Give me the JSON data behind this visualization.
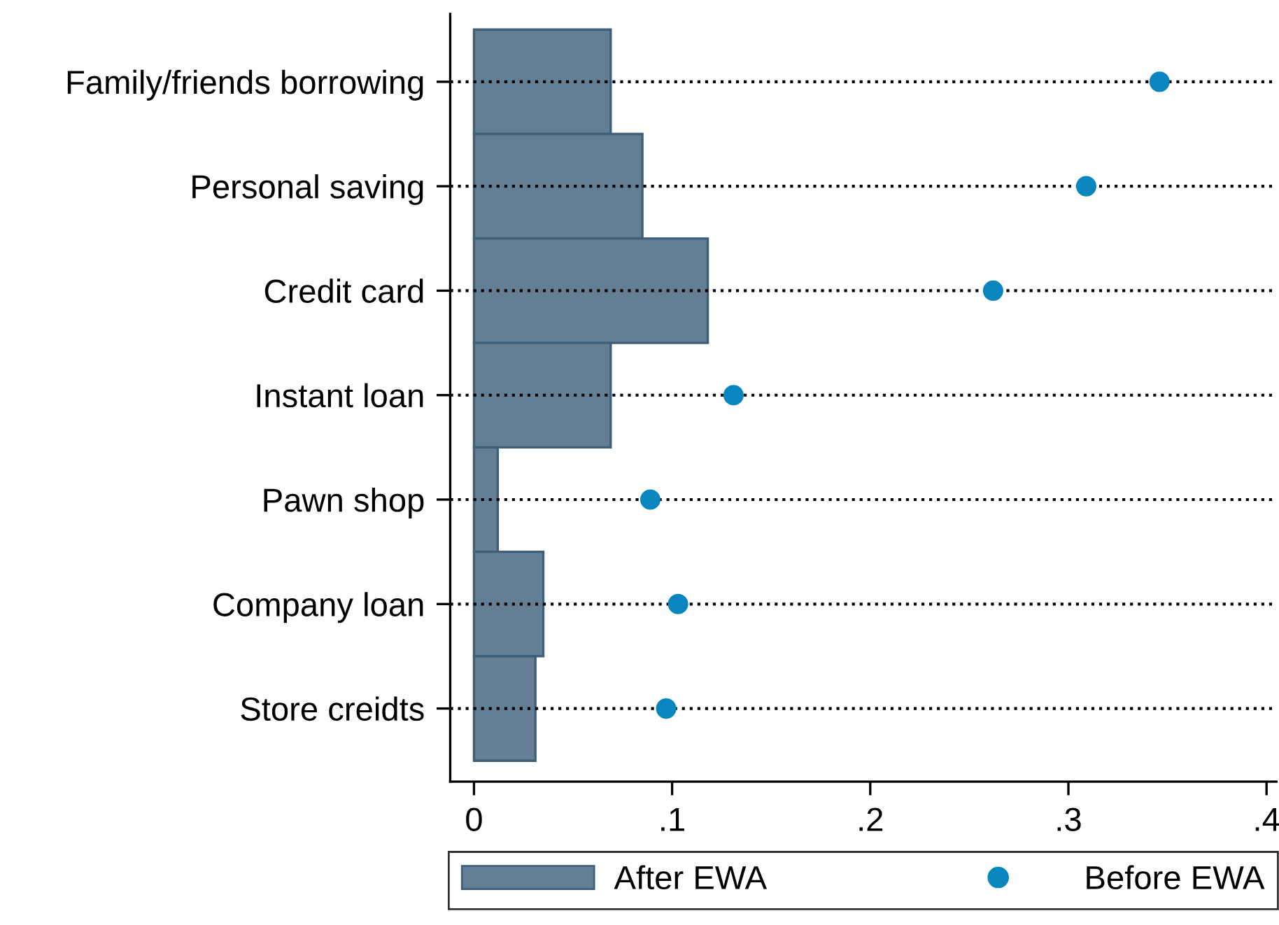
{
  "chart_data": {
    "type": "bar",
    "orientation": "horizontal",
    "categories": [
      "Family/friends borrowing",
      "Personal saving",
      "Credit card",
      "Instant loan",
      "Pawn shop",
      "Company loan",
      "Store creidts"
    ],
    "series": [
      {
        "name": "After EWA",
        "color": "#647f94",
        "values": [
          0.069,
          0.085,
          0.118,
          0.069,
          0.012,
          0.035,
          0.031
        ]
      },
      {
        "name": "Before EWA",
        "type": "scatter",
        "color": "#0a86bf",
        "values": [
          0.346,
          0.309,
          0.262,
          0.131,
          0.089,
          0.103,
          0.097
        ]
      }
    ],
    "xlim": [
      -0.012,
      0.405
    ],
    "xticks": [
      0,
      {
        "value": 0.1,
        "label": ".1"
      },
      {
        "value": 0.2,
        "label": ".2"
      },
      {
        "value": 0.3,
        "label": ".3"
      },
      {
        "value": 0.4,
        "label": ".4"
      }
    ],
    "grid": "y",
    "line_style": "dotted",
    "marker": "circle",
    "legend": "bottom"
  }
}
